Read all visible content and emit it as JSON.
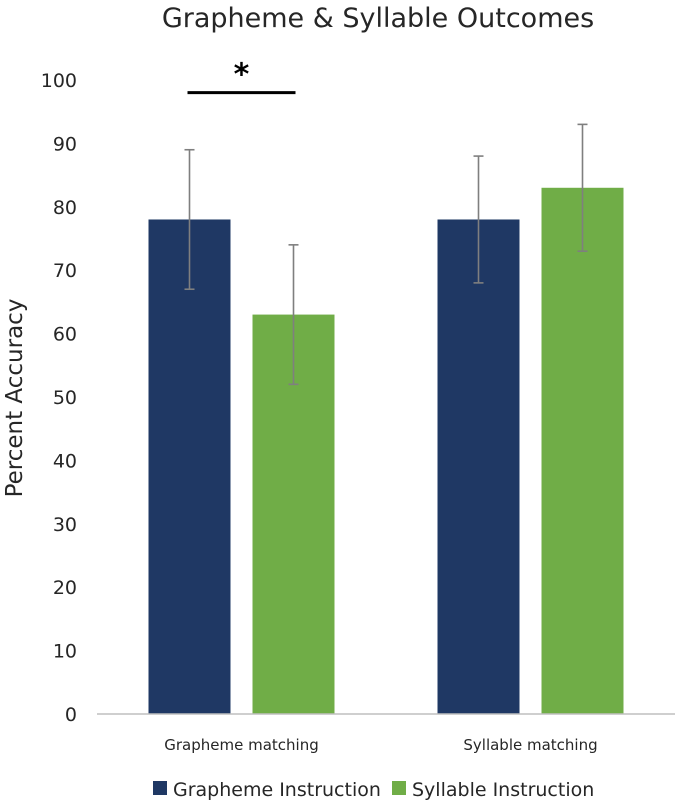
{
  "chart_data": {
    "type": "bar",
    "title": "Grapheme & Syllable Outcomes",
    "xlabel": "",
    "ylabel": "Percent Accuracy",
    "ylim": [
      0,
      100
    ],
    "yticks": [
      0,
      10,
      20,
      30,
      40,
      50,
      60,
      70,
      80,
      90,
      100
    ],
    "ytick_labels": [
      "0",
      "10",
      "20",
      "30",
      "40",
      "50",
      "60",
      "70",
      "80",
      "90",
      "100"
    ],
    "categories": [
      "Grapheme matching",
      "Syllable matching"
    ],
    "series": [
      {
        "name": "Grapheme Instruction",
        "color": "#1f3864",
        "values": [
          78,
          78
        ],
        "error": [
          11,
          10
        ]
      },
      {
        "name": "Syllable Instruction",
        "color": "#70ad47",
        "values": [
          63,
          83
        ],
        "error": [
          11,
          10
        ]
      }
    ],
    "error_bar_color": "#7f7f7f",
    "grid": false,
    "legend_position": "bottom",
    "annotation": {
      "text": "*",
      "category_index": 0,
      "y": 98
    }
  }
}
